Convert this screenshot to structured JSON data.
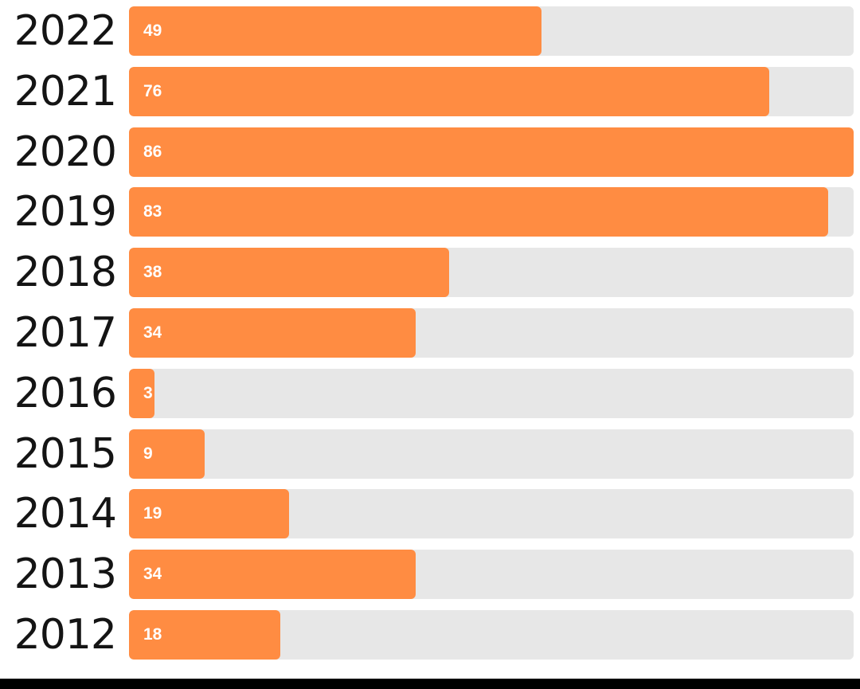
{
  "chart_data": {
    "type": "bar",
    "orientation": "horizontal",
    "categories": [
      "2022",
      "2021",
      "2020",
      "2019",
      "2018",
      "2017",
      "2016",
      "2015",
      "2014",
      "2013",
      "2012"
    ],
    "values": [
      49,
      76,
      86,
      83,
      38,
      34,
      3,
      9,
      19,
      34,
      18
    ],
    "xlim": [
      0,
      86
    ],
    "grid": false,
    "legend": "none",
    "bar_color": "#ff8c42",
    "track_color": "#e7e7e7"
  }
}
